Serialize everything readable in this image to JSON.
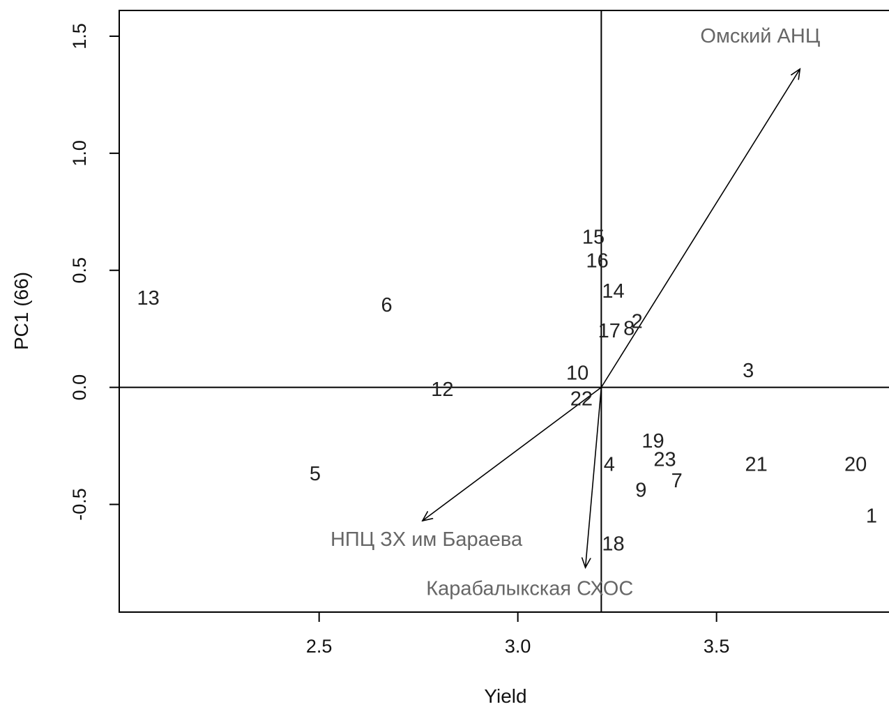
{
  "chart_data": {
    "type": "scatter",
    "xlabel": "Yield",
    "ylabel": "PC1 (66)",
    "xlim": [
      1.997,
      3.941
    ],
    "ylim": [
      -0.96,
      1.61
    ],
    "xticks": [
      {
        "value": 2.5,
        "label": "2.5"
      },
      {
        "value": 3.0,
        "label": "3.0"
      },
      {
        "value": 3.5,
        "label": "3.5"
      }
    ],
    "yticks": [
      {
        "value": -0.5,
        "label": "-0.5"
      },
      {
        "value": 0.0,
        "label": "0.0"
      },
      {
        "value": 0.5,
        "label": "0.5"
      },
      {
        "value": 1.0,
        "label": "1.0"
      },
      {
        "value": 1.5,
        "label": "1.5"
      }
    ],
    "origin": {
      "x": 3.21,
      "y": 0.0
    },
    "genotypes": [
      {
        "label": "13",
        "x": 2.07,
        "y": 0.38
      },
      {
        "label": "6",
        "x": 2.67,
        "y": 0.35
      },
      {
        "label": "12",
        "x": 2.81,
        "y": -0.01
      },
      {
        "label": "5",
        "x": 2.49,
        "y": -0.37
      },
      {
        "label": "15",
        "x": 3.19,
        "y": 0.64
      },
      {
        "label": "16",
        "x": 3.2,
        "y": 0.54
      },
      {
        "label": "14",
        "x": 3.24,
        "y": 0.41
      },
      {
        "label": "2",
        "x": 3.3,
        "y": 0.28
      },
      {
        "label": "17",
        "x": 3.23,
        "y": 0.24
      },
      {
        "label": "8",
        "x": 3.28,
        "y": 0.25
      },
      {
        "label": "10",
        "x": 3.15,
        "y": 0.06
      },
      {
        "label": "22",
        "x": 3.16,
        "y": -0.05
      },
      {
        "label": "3",
        "x": 3.58,
        "y": 0.07
      },
      {
        "label": "19",
        "x": 3.34,
        "y": -0.23
      },
      {
        "label": "23",
        "x": 3.37,
        "y": -0.31
      },
      {
        "label": "4",
        "x": 3.23,
        "y": -0.33
      },
      {
        "label": "21",
        "x": 3.6,
        "y": -0.33
      },
      {
        "label": "20",
        "x": 3.85,
        "y": -0.33
      },
      {
        "label": "7",
        "x": 3.4,
        "y": -0.4
      },
      {
        "label": "9",
        "x": 3.31,
        "y": -0.44
      },
      {
        "label": "1",
        "x": 3.89,
        "y": -0.55
      },
      {
        "label": "18",
        "x": 3.24,
        "y": -0.67
      }
    ],
    "environments": [
      {
        "name": "Омский АНЦ",
        "x": 3.71,
        "y": 1.36,
        "label_x": 3.61,
        "label_y": 1.5
      },
      {
        "name": "НПЦ ЗХ им Бараева",
        "x": 2.76,
        "y": -0.57,
        "label_x": 2.77,
        "label_y": -0.65
      },
      {
        "name": "Карабалыкская СХОС",
        "x": 3.17,
        "y": -0.77,
        "label_x": 3.03,
        "label_y": -0.86
      }
    ]
  }
}
